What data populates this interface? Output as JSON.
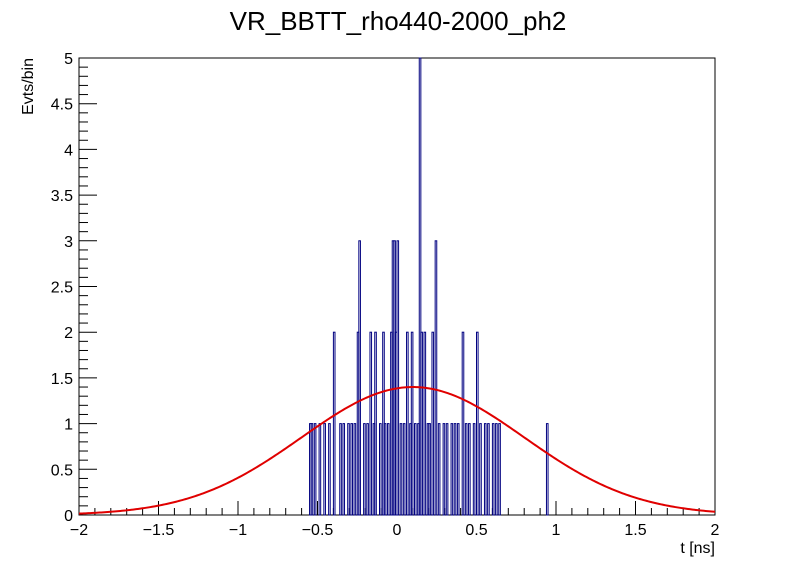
{
  "chart_data": {
    "type": "histogram",
    "title": "VR_BBTT_rho440-2000_ph2",
    "xlabel": "t [ns]",
    "ylabel": "Evts/bin",
    "xlim": [
      -2,
      2
    ],
    "ylim": [
      0,
      5
    ],
    "x_ticks": [
      "-2",
      "-1.5",
      "-1",
      "-0.5",
      "0",
      "0.5",
      "1",
      "1.5",
      "2"
    ],
    "y_ticks": [
      "0",
      "0.5",
      "1",
      "1.5",
      "2",
      "2.5",
      "3",
      "3.5",
      "4",
      "4.5",
      "5"
    ],
    "grid": false,
    "bin_width": 0.01,
    "colors": {
      "histogram": "#000080",
      "fit": "#e00000",
      "axis": "#000000"
    },
    "histogram_bins": [
      {
        "x": -0.55,
        "count": 1
      },
      {
        "x": -0.54,
        "count": 1
      },
      {
        "x": -0.52,
        "count": 1
      },
      {
        "x": -0.49,
        "count": 1
      },
      {
        "x": -0.46,
        "count": 1
      },
      {
        "x": -0.43,
        "count": 1
      },
      {
        "x": -0.4,
        "count": 2
      },
      {
        "x": -0.36,
        "count": 1
      },
      {
        "x": -0.34,
        "count": 1
      },
      {
        "x": -0.31,
        "count": 1
      },
      {
        "x": -0.29,
        "count": 1
      },
      {
        "x": -0.27,
        "count": 1
      },
      {
        "x": -0.25,
        "count": 2
      },
      {
        "x": -0.24,
        "count": 3
      },
      {
        "x": -0.21,
        "count": 1
      },
      {
        "x": -0.19,
        "count": 1
      },
      {
        "x": -0.17,
        "count": 2
      },
      {
        "x": -0.15,
        "count": 1
      },
      {
        "x": -0.14,
        "count": 2
      },
      {
        "x": -0.11,
        "count": 1
      },
      {
        "x": -0.09,
        "count": 2
      },
      {
        "x": -0.08,
        "count": 1
      },
      {
        "x": -0.06,
        "count": 1
      },
      {
        "x": -0.04,
        "count": 2
      },
      {
        "x": -0.03,
        "count": 3
      },
      {
        "x": -0.02,
        "count": 3
      },
      {
        "x": -0.01,
        "count": 2
      },
      {
        "x": 0.0,
        "count": 3
      },
      {
        "x": 0.02,
        "count": 1
      },
      {
        "x": 0.04,
        "count": 1
      },
      {
        "x": 0.06,
        "count": 2
      },
      {
        "x": 0.08,
        "count": 1
      },
      {
        "x": 0.09,
        "count": 2
      },
      {
        "x": 0.11,
        "count": 1
      },
      {
        "x": 0.13,
        "count": 1
      },
      {
        "x": 0.14,
        "count": 5
      },
      {
        "x": 0.15,
        "count": 2
      },
      {
        "x": 0.17,
        "count": 2
      },
      {
        "x": 0.19,
        "count": 1
      },
      {
        "x": 0.2,
        "count": 1
      },
      {
        "x": 0.22,
        "count": 2
      },
      {
        "x": 0.24,
        "count": 3
      },
      {
        "x": 0.26,
        "count": 1
      },
      {
        "x": 0.29,
        "count": 1
      },
      {
        "x": 0.31,
        "count": 1
      },
      {
        "x": 0.34,
        "count": 1
      },
      {
        "x": 0.36,
        "count": 1
      },
      {
        "x": 0.38,
        "count": 1
      },
      {
        "x": 0.41,
        "count": 2
      },
      {
        "x": 0.43,
        "count": 1
      },
      {
        "x": 0.45,
        "count": 1
      },
      {
        "x": 0.48,
        "count": 1
      },
      {
        "x": 0.5,
        "count": 2
      },
      {
        "x": 0.52,
        "count": 1
      },
      {
        "x": 0.55,
        "count": 1
      },
      {
        "x": 0.57,
        "count": 1
      },
      {
        "x": 0.6,
        "count": 1
      },
      {
        "x": 0.62,
        "count": 1
      },
      {
        "x": 0.64,
        "count": 1
      },
      {
        "x": 0.94,
        "count": 1
      }
    ],
    "fit": {
      "type": "gaussian",
      "amplitude": 1.4,
      "mean": 0.1,
      "sigma": 0.7
    }
  }
}
